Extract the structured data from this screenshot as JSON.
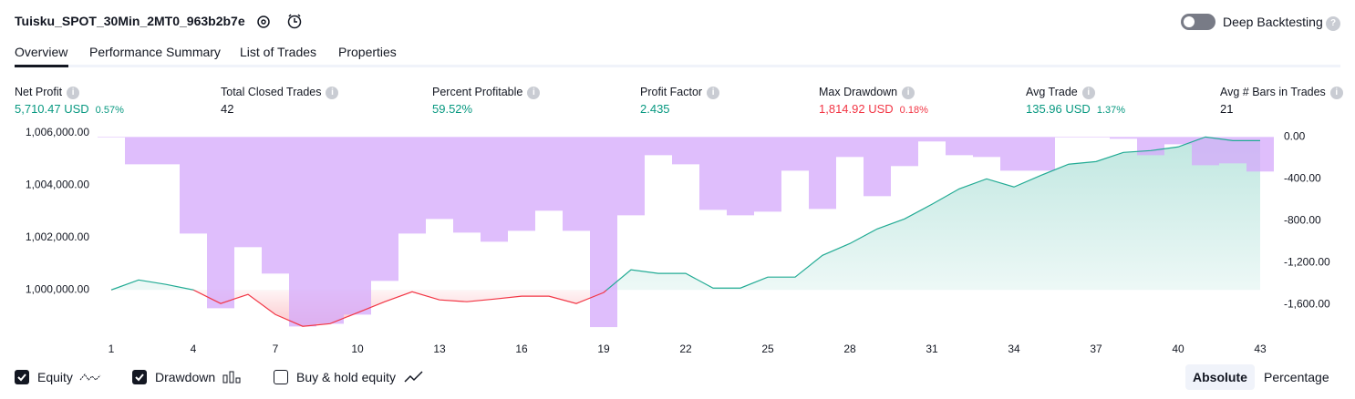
{
  "header": {
    "title": "Tuisku_SPOT_30Min_2MT0_963b2b7e",
    "deep_backtesting": "Deep Backtesting"
  },
  "tabs": [
    "Overview",
    "Performance Summary",
    "List of Trades",
    "Properties"
  ],
  "stats": [
    {
      "label": "Net Profit",
      "value": "5,710.47 USD",
      "percent": "0.57%",
      "color": "#089981"
    },
    {
      "label": "Total Closed Trades",
      "value": "42",
      "color": "#131722"
    },
    {
      "label": "Percent Profitable",
      "value": "59.52%",
      "color": "#089981"
    },
    {
      "label": "Profit Factor",
      "value": "2.435",
      "color": "#089981"
    },
    {
      "label": "Max Drawdown",
      "value": "1,814.92 USD",
      "percent": "0.18%",
      "color": "#f23645"
    },
    {
      "label": "Avg Trade",
      "value": "135.96 USD",
      "percent": "1.37%",
      "color": "#089981"
    },
    {
      "label": "Avg # Bars in Trades",
      "value": "21",
      "color": "#131722"
    }
  ],
  "chart_data": {
    "type": "line",
    "x": [
      1,
      2,
      3,
      4,
      5,
      6,
      7,
      8,
      9,
      10,
      11,
      12,
      13,
      14,
      15,
      16,
      17,
      18,
      19,
      20,
      21,
      22,
      23,
      24,
      25,
      26,
      27,
      28,
      29,
      30,
      31,
      32,
      33,
      34,
      35,
      36,
      37,
      38,
      39,
      40,
      41,
      42,
      43
    ],
    "xlim": [
      0.5,
      43.5
    ],
    "xticks": [
      1,
      4,
      7,
      10,
      13,
      16,
      19,
      22,
      25,
      28,
      31,
      34,
      37,
      40,
      43
    ],
    "ylim": [
      998200,
      1006200
    ],
    "yticks": [
      {
        "value": 1000000,
        "label": "1,000,000.00"
      },
      {
        "value": 1002000,
        "label": "1,002,000.00"
      },
      {
        "value": 1004000,
        "label": "1,004,000.00"
      },
      {
        "value": 1006000,
        "label": "1,006,000.00"
      }
    ],
    "y2lim": [
      -1910,
      90
    ],
    "y2ticks": [
      {
        "value": 0,
        "label": "0.00"
      },
      {
        "value": -400,
        "label": "-400.00"
      },
      {
        "value": -800,
        "label": "-800.00"
      },
      {
        "value": -1200,
        "label": "-1,200.00"
      },
      {
        "value": -1600,
        "label": "-1,600.00"
      }
    ],
    "series": [
      {
        "name": "Equity",
        "type": "line",
        "color": "#22ab94",
        "below_color": "#f23645",
        "values": [
          1000000,
          1000380,
          1000210,
          1000000,
          999480,
          999830,
          999060,
          998610,
          998710,
          999130,
          999550,
          999930,
          999620,
          999550,
          999650,
          999760,
          999760,
          999480,
          999900,
          1000770,
          1000630,
          1000630,
          1000070,
          1000070,
          1000490,
          1000490,
          1001320,
          1001770,
          1002330,
          1002710,
          1003270,
          1003860,
          1004240,
          1003930,
          1004380,
          1004800,
          1004900,
          1005250,
          1005320,
          1005460,
          1005840,
          1005700,
          1005700
        ]
      },
      {
        "name": "Drawdown",
        "type": "bar",
        "axis": "y2",
        "color": "#d4a8fb",
        "values": [
          -5,
          -261,
          -261,
          -922,
          -1635,
          -1052,
          -1304,
          -1809,
          -1783,
          -1696,
          -1374,
          -922,
          -783,
          -913,
          -1000,
          -896,
          -704,
          -896,
          -1815,
          -748,
          -174,
          -261,
          -696,
          -748,
          -713,
          -322,
          -687,
          -191,
          -565,
          -278,
          -43,
          -174,
          -191,
          -322,
          -322,
          -5,
          -5,
          -17,
          -174,
          -70,
          -270,
          -252,
          -330
        ]
      }
    ]
  },
  "buy_hold": "Buy & hold equity",
  "modes": [
    "Absolute",
    "Percentage"
  ]
}
